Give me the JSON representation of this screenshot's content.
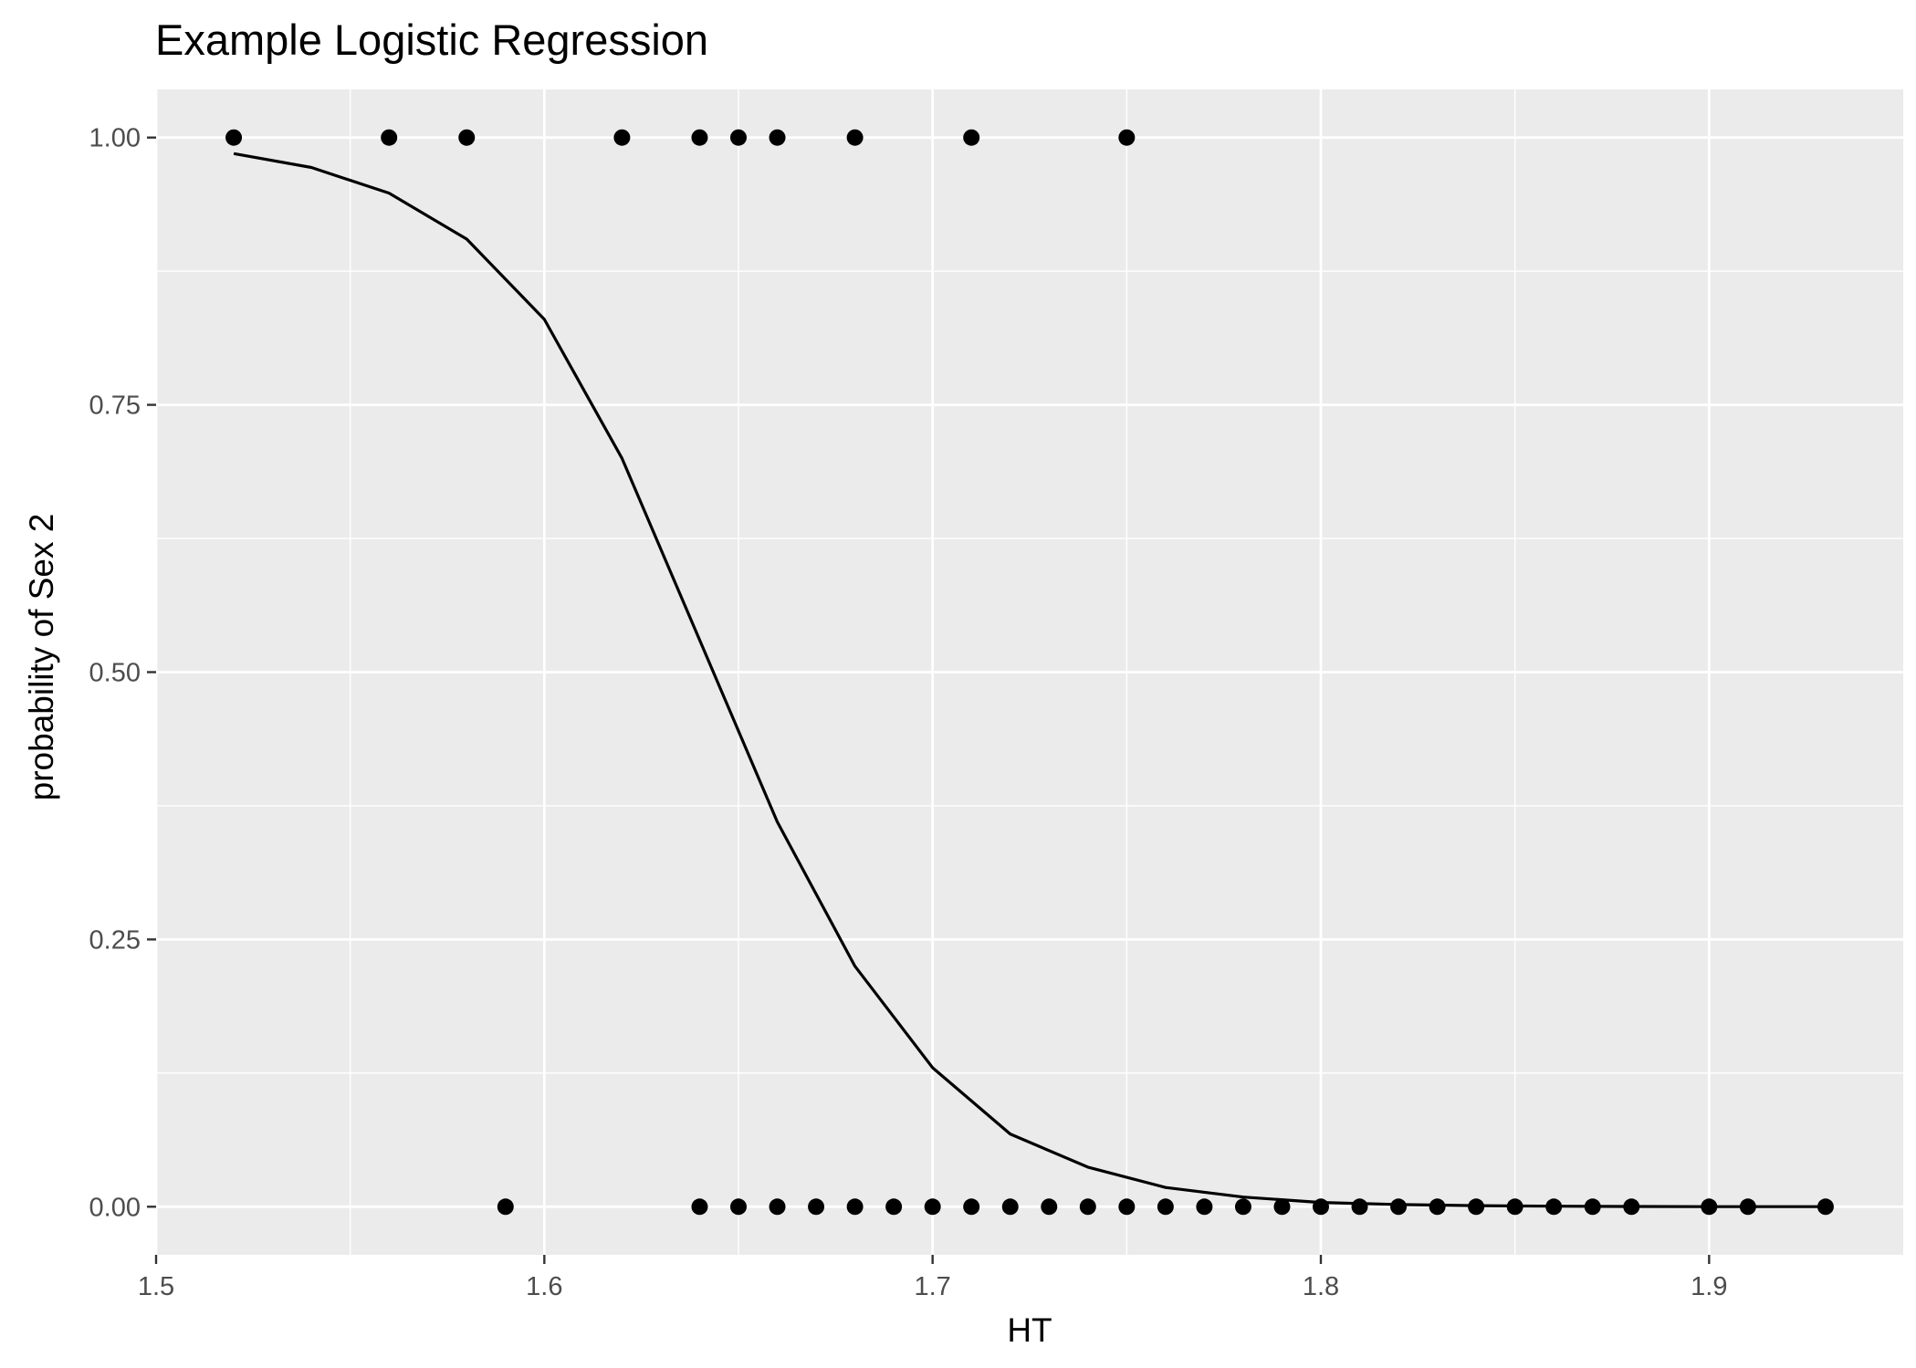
{
  "chart_data": {
    "type": "scatter",
    "title": "Example Logistic Regression",
    "xlabel": "HT",
    "ylabel": "probability of Sex 2",
    "xlim": [
      1.5,
      1.95
    ],
    "ylim": [
      -0.045,
      1.045
    ],
    "x_ticks": [
      1.5,
      1.6,
      1.7,
      1.8,
      1.9
    ],
    "x_tick_labels": [
      "1.5",
      "1.6",
      "1.7",
      "1.8",
      "1.9"
    ],
    "y_ticks": [
      0,
      0.25,
      0.5,
      0.75,
      1
    ],
    "y_tick_labels": [
      "0.00",
      "0.25",
      "0.50",
      "0.75",
      "1.00"
    ],
    "grid": true,
    "legend": "none",
    "colors": {
      "panel": "#ebebeb",
      "grid": "#ffffff",
      "points": "#000000",
      "curve": "#000000",
      "tick_text": "#4d4d4d"
    },
    "series": [
      {
        "type": "scatter",
        "points": [
          [
            1.52,
            1
          ],
          [
            1.56,
            1
          ],
          [
            1.58,
            1
          ],
          [
            1.62,
            1
          ],
          [
            1.64,
            1
          ],
          [
            1.65,
            1
          ],
          [
            1.66,
            1
          ],
          [
            1.68,
            1
          ],
          [
            1.71,
            1
          ],
          [
            1.75,
            1
          ],
          [
            1.59,
            0
          ],
          [
            1.64,
            0
          ],
          [
            1.65,
            0
          ],
          [
            1.66,
            0
          ],
          [
            1.67,
            0
          ],
          [
            1.68,
            0
          ],
          [
            1.69,
            0
          ],
          [
            1.7,
            0
          ],
          [
            1.71,
            0
          ],
          [
            1.72,
            0
          ],
          [
            1.73,
            0
          ],
          [
            1.74,
            0
          ],
          [
            1.75,
            0
          ],
          [
            1.76,
            0
          ],
          [
            1.77,
            0
          ],
          [
            1.78,
            0
          ],
          [
            1.79,
            0
          ],
          [
            1.8,
            0
          ],
          [
            1.81,
            0
          ],
          [
            1.82,
            0
          ],
          [
            1.83,
            0
          ],
          [
            1.84,
            0
          ],
          [
            1.85,
            0
          ],
          [
            1.86,
            0
          ],
          [
            1.87,
            0
          ],
          [
            1.88,
            0
          ],
          [
            1.9,
            0
          ],
          [
            1.91,
            0
          ],
          [
            1.93,
            0
          ]
        ]
      },
      {
        "type": "line",
        "points": [
          [
            1.52,
            0.985
          ],
          [
            1.54,
            0.972
          ],
          [
            1.56,
            0.948
          ],
          [
            1.58,
            0.905
          ],
          [
            1.6,
            0.83
          ],
          [
            1.62,
            0.7
          ],
          [
            1.64,
            0.53
          ],
          [
            1.66,
            0.36
          ],
          [
            1.68,
            0.225
          ],
          [
            1.7,
            0.13
          ],
          [
            1.72,
            0.068
          ],
          [
            1.74,
            0.037
          ],
          [
            1.76,
            0.018
          ],
          [
            1.78,
            0.009
          ],
          [
            1.8,
            0.004
          ],
          [
            1.82,
            0.002
          ],
          [
            1.84,
            0.001
          ],
          [
            1.86,
            0.0005
          ],
          [
            1.88,
            0.0002
          ],
          [
            1.9,
            0.0001
          ],
          [
            1.93,
            3e-05
          ]
        ]
      }
    ]
  }
}
